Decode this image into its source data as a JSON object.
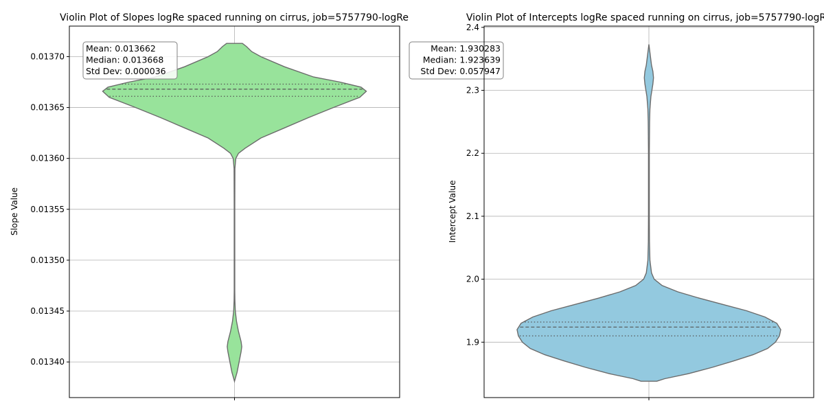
{
  "chart_data": [
    {
      "type": "violin",
      "title": "Violin Plot of Slopes logRe spaced running on cirrus, job=5757790-logRe",
      "xlabel": "",
      "ylabel": "Slope Value",
      "ylim": [
        0.013365,
        0.01373
      ],
      "yticks": [
        0.0134,
        0.01345,
        0.0135,
        0.01355,
        0.0136,
        0.01365,
        0.0137
      ],
      "ytick_labels": [
        "0.01340",
        "0.01345",
        "0.01350",
        "0.01355",
        "0.01360",
        "0.01365",
        "0.01370"
      ],
      "grid": true,
      "color": "#98e39b",
      "quartiles": {
        "q1": 0.013661,
        "median": 0.013668,
        "q3": 0.013673
      },
      "range": [
        0.013381,
        0.013713
      ],
      "stats": {
        "mean": "Mean: 0.013662",
        "median": "Median: 0.013668",
        "std": "Std Dev: 0.000036"
      },
      "stats_align": "left",
      "density": [
        [
          0.013381,
          0.0
        ],
        [
          0.01339,
          0.02
        ],
        [
          0.0134,
          0.035
        ],
        [
          0.01341,
          0.05
        ],
        [
          0.013415,
          0.055
        ],
        [
          0.01342,
          0.05
        ],
        [
          0.01343,
          0.03
        ],
        [
          0.01344,
          0.015
        ],
        [
          0.01345,
          0.006
        ],
        [
          0.01346,
          0.003
        ],
        [
          0.01347,
          0.002
        ],
        [
          0.0135,
          0.002
        ],
        [
          0.01355,
          0.002
        ],
        [
          0.01359,
          0.003
        ],
        [
          0.0136,
          0.01
        ],
        [
          0.013605,
          0.03
        ],
        [
          0.01361,
          0.08
        ],
        [
          0.01362,
          0.2
        ],
        [
          0.01363,
          0.38
        ],
        [
          0.01364,
          0.56
        ],
        [
          0.01365,
          0.75
        ],
        [
          0.01366,
          0.95
        ],
        [
          0.013666,
          1.0
        ],
        [
          0.01367,
          0.96
        ],
        [
          0.013675,
          0.8
        ],
        [
          0.01368,
          0.6
        ],
        [
          0.01369,
          0.38
        ],
        [
          0.0137,
          0.2
        ],
        [
          0.013705,
          0.13
        ],
        [
          0.01371,
          0.09
        ],
        [
          0.013713,
          0.06
        ]
      ]
    },
    {
      "type": "violin",
      "title": "Violin Plot of Intercepts logRe spaced running on cirrus, job=5757790-logRe",
      "xlabel": "",
      "ylabel": "Intercept Value",
      "ylim": [
        1.812,
        2.402
      ],
      "yticks": [
        1.9,
        2.0,
        2.1,
        2.2,
        2.3,
        2.4
      ],
      "ytick_labels": [
        "1.9",
        "2.0",
        "2.1",
        "2.2",
        "2.3",
        "2.4"
      ],
      "grid": true,
      "color": "#93c9df",
      "quartiles": {
        "q1": 1.91,
        "median": 1.924,
        "q3": 1.932
      },
      "range": [
        1.838,
        2.373
      ],
      "stats": {
        "mean": "Mean: 1.930283",
        "median": "Median: 1.923639",
        "std": "Std Dev: 0.057947"
      },
      "stats_align": "right",
      "density": [
        [
          1.838,
          0.06
        ],
        [
          1.842,
          0.12
        ],
        [
          1.85,
          0.3
        ],
        [
          1.86,
          0.48
        ],
        [
          1.87,
          0.64
        ],
        [
          1.88,
          0.79
        ],
        [
          1.89,
          0.9
        ],
        [
          1.9,
          0.96
        ],
        [
          1.91,
          0.99
        ],
        [
          1.92,
          1.0
        ],
        [
          1.93,
          0.97
        ],
        [
          1.94,
          0.88
        ],
        [
          1.95,
          0.74
        ],
        [
          1.96,
          0.56
        ],
        [
          1.97,
          0.38
        ],
        [
          1.98,
          0.22
        ],
        [
          1.99,
          0.1
        ],
        [
          2.0,
          0.04
        ],
        [
          2.01,
          0.02
        ],
        [
          2.03,
          0.008
        ],
        [
          2.06,
          0.004
        ],
        [
          2.1,
          0.003
        ],
        [
          2.15,
          0.003
        ],
        [
          2.2,
          0.003
        ],
        [
          2.25,
          0.005
        ],
        [
          2.27,
          0.008
        ],
        [
          2.29,
          0.015
        ],
        [
          2.31,
          0.03
        ],
        [
          2.32,
          0.035
        ],
        [
          2.33,
          0.03
        ],
        [
          2.34,
          0.02
        ],
        [
          2.36,
          0.008
        ],
        [
          2.373,
          0.0
        ]
      ]
    }
  ]
}
